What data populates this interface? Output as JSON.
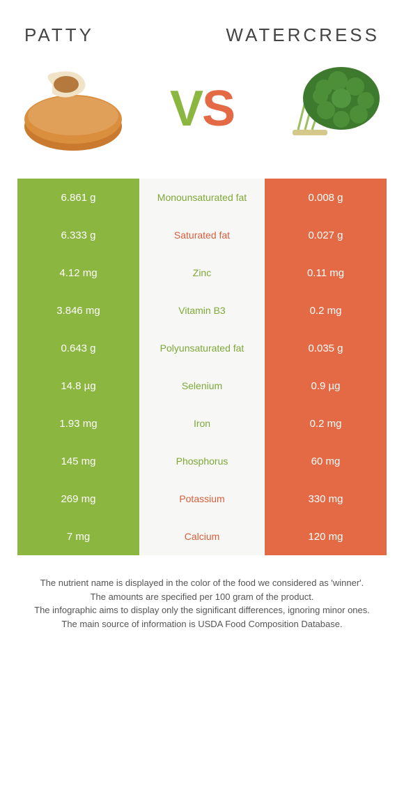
{
  "foods": {
    "left": {
      "name": "Patty",
      "color": "#8bb63f"
    },
    "right": {
      "name": "Watercress",
      "color": "#e36a45"
    }
  },
  "vs": {
    "v": "V",
    "s": "S"
  },
  "rows": [
    {
      "left": "6.861 g",
      "label": "Monounsaturated fat",
      "right": "0.008 g",
      "winner": "left"
    },
    {
      "left": "6.333 g",
      "label": "Saturated fat",
      "right": "0.027 g",
      "winner": "right"
    },
    {
      "left": "4.12 mg",
      "label": "Zinc",
      "right": "0.11 mg",
      "winner": "left"
    },
    {
      "left": "3.846 mg",
      "label": "Vitamin B3",
      "right": "0.2 mg",
      "winner": "left"
    },
    {
      "left": "0.643 g",
      "label": "Polyunsaturated fat",
      "right": "0.035 g",
      "winner": "left"
    },
    {
      "left": "14.8 µg",
      "label": "Selenium",
      "right": "0.9 µg",
      "winner": "left"
    },
    {
      "left": "1.93 mg",
      "label": "Iron",
      "right": "0.2 mg",
      "winner": "left"
    },
    {
      "left": "145 mg",
      "label": "Phosphorus",
      "right": "60 mg",
      "winner": "left"
    },
    {
      "left": "269 mg",
      "label": "Potassium",
      "right": "330 mg",
      "winner": "right"
    },
    {
      "left": "7 mg",
      "label": "Calcium",
      "right": "120 mg",
      "winner": "right"
    }
  ],
  "notes": {
    "l1": "The nutrient name is displayed in the color of the food we considered as 'winner'.",
    "l2": "The amounts are specified per 100 gram of the product.",
    "l3": "The infographic aims to display only the significant differences, ignoring minor ones.",
    "l4": "The main source of information is USDA Food Composition Database."
  }
}
